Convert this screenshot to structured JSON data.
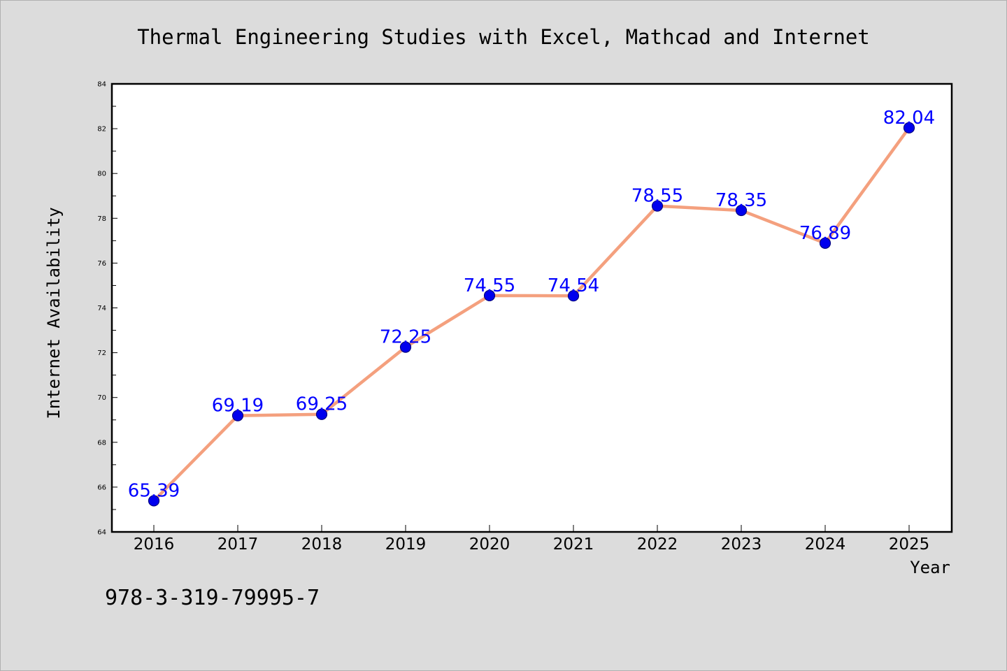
{
  "chart_data": {
    "type": "line",
    "title": "Thermal Engineering Studies with Excel, Mathcad and Internet",
    "xlabel": "Year",
    "ylabel": "Internet Availability",
    "categories": [
      "2016",
      "2017",
      "2018",
      "2019",
      "2020",
      "2021",
      "2022",
      "2023",
      "2024",
      "2025"
    ],
    "values": [
      65.39,
      69.19,
      69.25,
      72.25,
      74.55,
      74.54,
      78.55,
      78.35,
      76.89,
      82.04
    ],
    "data_labels": [
      "65.39",
      "69.19",
      "69.25",
      "72.25",
      "74.55",
      "74.54",
      "78.55",
      "78.35",
      "76.89",
      "82.04"
    ],
    "ylim": [
      64,
      84
    ],
    "yticks": [
      "64",
      "66",
      "68",
      "70",
      "72",
      "74",
      "76",
      "78",
      "80",
      "82",
      "84"
    ],
    "grid": false,
    "legend": "none",
    "colors": {
      "line": "#f4a07e",
      "marker_fill": "#0000ee",
      "marker_edge": "#000080",
      "data_label": "#0000ff",
      "background": "#dcdcdc",
      "plot_background": "#ffffff"
    }
  },
  "footer": {
    "isbn": "978-3-319-79995-7"
  }
}
